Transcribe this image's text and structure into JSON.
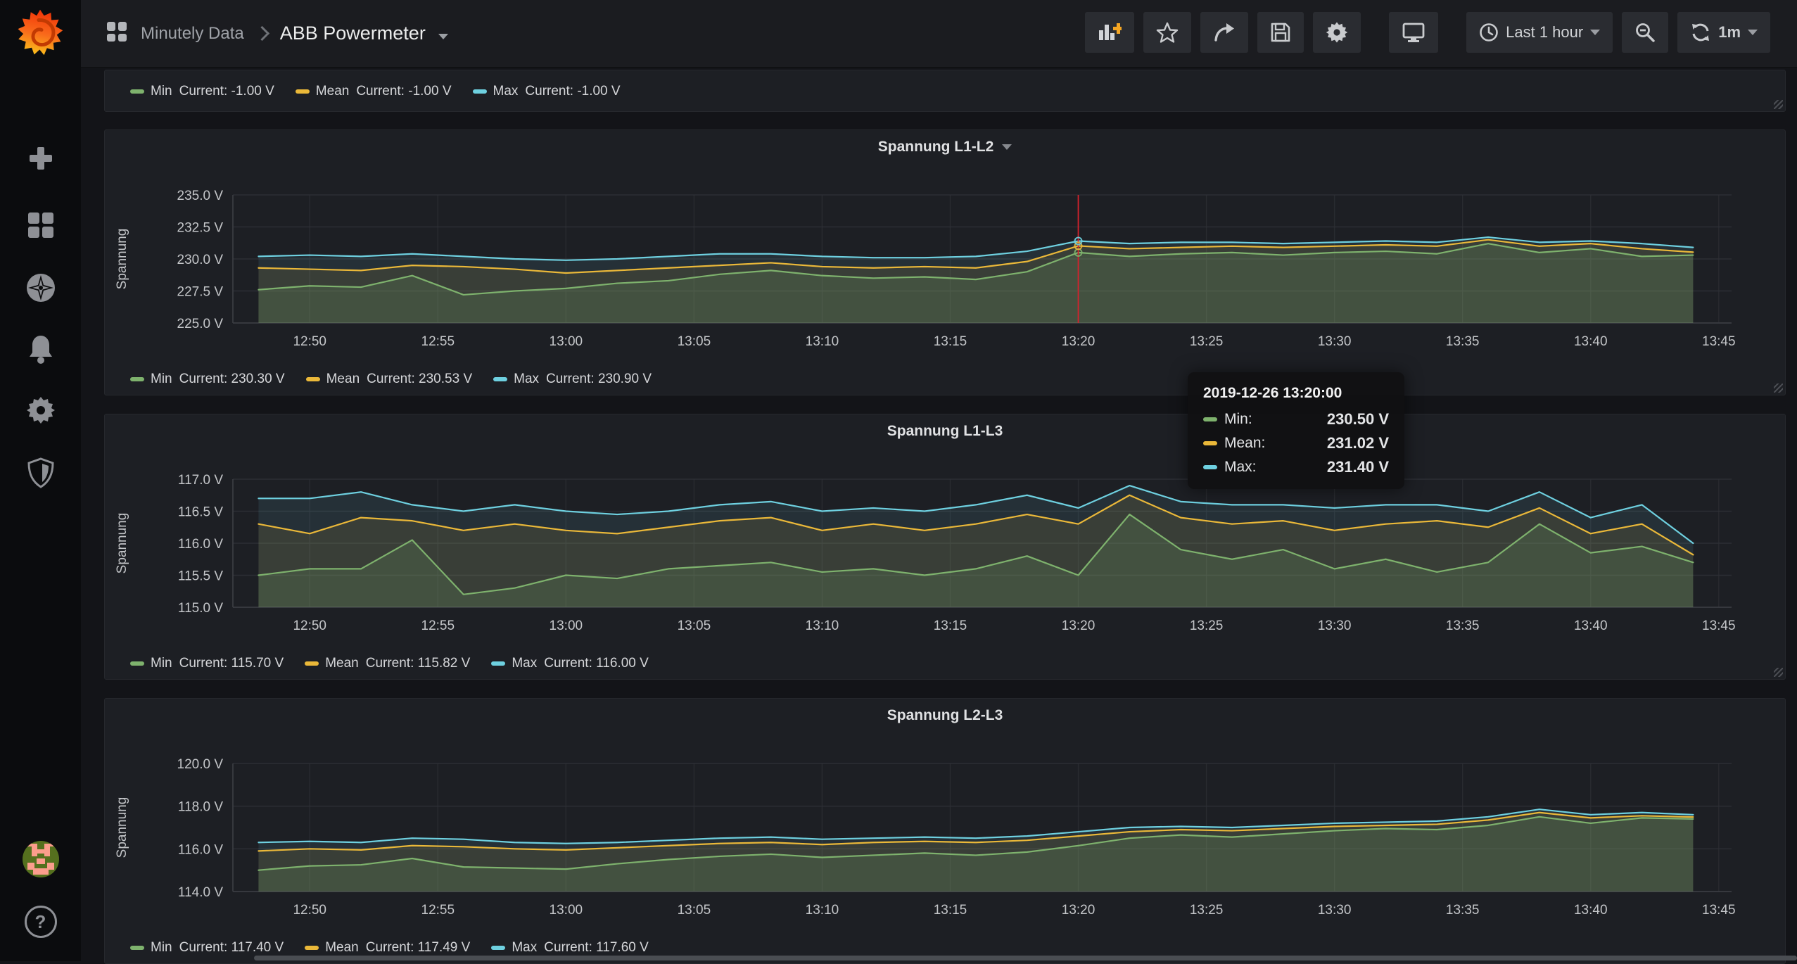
{
  "app": {
    "name": "Grafana"
  },
  "colors": {
    "min": "#7eb26d",
    "mean": "#eab839",
    "max": "#6ed0e0",
    "crosshair": "#d2222d",
    "accent_orange": "#f27b1e",
    "brand_orange": "#ff6a00"
  },
  "sidebar": {
    "icons": [
      "grafana-logo",
      "create",
      "dashboards",
      "explore",
      "alerting",
      "configuration",
      "server-admin",
      "user-avatar",
      "help"
    ]
  },
  "header": {
    "breadcrumb": {
      "section": "Minutely Data",
      "page": "ABB Powermeter"
    },
    "toolbar": {
      "icons": [
        "add-panel",
        "star",
        "share",
        "save",
        "dashboard-settings",
        "cycle-view",
        "time-picker",
        "zoom-out",
        "refresh"
      ],
      "time_range": "Last 1 hour",
      "refresh_interval": "1m"
    }
  },
  "tooltip": {
    "timestamp": "2019-12-26 13:20:00",
    "rows": [
      {
        "key": "min",
        "label": "Min:",
        "value": "230.50 V"
      },
      {
        "key": "mean",
        "label": "Mean:",
        "value": "231.02 V"
      },
      {
        "key": "max",
        "label": "Max:",
        "value": "231.40 V"
      }
    ]
  },
  "top_panel": {
    "legend": [
      {
        "key": "min",
        "name": "Min",
        "current": "Current: -1.00 V"
      },
      {
        "key": "mean",
        "name": "Mean",
        "current": "Current: -1.00 V"
      },
      {
        "key": "max",
        "name": "Max",
        "current": "Current: -1.00 V"
      }
    ]
  },
  "chart_data": [
    {
      "type": "line",
      "title": "Spannung L1-L2",
      "title_caret": true,
      "ylabel": "Spannung",
      "ylim": [
        225,
        235
      ],
      "x_domain": [
        47,
        105.5
      ],
      "x_start_minute": 48,
      "x_step_min": 2,
      "x_start_time": "12:48",
      "grid": true,
      "legend_position": "bottom",
      "y_ticks": [
        {
          "v": 225.0,
          "t": "225.0 V"
        },
        {
          "v": 227.5,
          "t": "227.5 V"
        },
        {
          "v": 230.0,
          "t": "230.0 V"
        },
        {
          "v": 232.5,
          "t": "232.5 V"
        },
        {
          "v": 235.0,
          "t": "235.0 V"
        }
      ],
      "x_ticks": [
        {
          "m": 50,
          "t": "12:50"
        },
        {
          "m": 55,
          "t": "12:55"
        },
        {
          "m": 60,
          "t": "13:00"
        },
        {
          "m": 65,
          "t": "13:05"
        },
        {
          "m": 70,
          "t": "13:10"
        },
        {
          "m": 75,
          "t": "13:15"
        },
        {
          "m": 80,
          "t": "13:20"
        },
        {
          "m": 85,
          "t": "13:25"
        },
        {
          "m": 90,
          "t": "13:30"
        },
        {
          "m": 95,
          "t": "13:35"
        },
        {
          "m": 100,
          "t": "13:40"
        },
        {
          "m": 105,
          "t": "13:45"
        }
      ],
      "series": [
        {
          "key": "min",
          "name": "Min",
          "values": [
            227.6,
            227.9,
            227.8,
            228.7,
            227.2,
            227.5,
            227.7,
            228.1,
            228.3,
            228.8,
            229.1,
            228.7,
            228.5,
            228.6,
            228.4,
            229.0,
            230.5,
            230.2,
            230.4,
            230.5,
            230.3,
            230.5,
            230.6,
            230.4,
            231.2,
            230.5,
            230.8,
            230.2,
            230.3
          ]
        },
        {
          "key": "mean",
          "name": "Mean",
          "values": [
            229.3,
            229.2,
            229.1,
            229.5,
            229.4,
            229.2,
            228.9,
            229.1,
            229.3,
            229.5,
            229.7,
            229.4,
            229.3,
            229.4,
            229.3,
            229.8,
            231.02,
            230.8,
            230.9,
            231.0,
            230.9,
            231.0,
            231.1,
            231.0,
            231.5,
            231.0,
            231.2,
            230.8,
            230.53
          ]
        },
        {
          "key": "max",
          "name": "Max",
          "values": [
            230.2,
            230.3,
            230.2,
            230.4,
            230.2,
            230.0,
            229.9,
            230.0,
            230.2,
            230.4,
            230.4,
            230.2,
            230.1,
            230.1,
            230.2,
            230.6,
            231.4,
            231.2,
            231.3,
            231.3,
            231.2,
            231.3,
            231.4,
            231.3,
            231.7,
            231.3,
            231.4,
            231.2,
            230.9
          ]
        }
      ],
      "legend": [
        {
          "key": "min",
          "name": "Min",
          "current": "Current: 230.30 V"
        },
        {
          "key": "mean",
          "name": "Mean",
          "current": "Current: 230.53 V"
        },
        {
          "key": "max",
          "name": "Max",
          "current": "Current: 230.90 V"
        }
      ],
      "crosshair": {
        "minute": 80,
        "time": "13:20"
      }
    },
    {
      "type": "line",
      "title": "Spannung L1-L3",
      "title_caret": false,
      "ylabel": "Spannung",
      "ylim": [
        115,
        117
      ],
      "x_domain": [
        47,
        105.5
      ],
      "x_start_minute": 48,
      "x_step_min": 2,
      "x_start_time": "12:48",
      "grid": true,
      "legend_position": "bottom",
      "y_ticks": [
        {
          "v": 115.0,
          "t": "115.0 V"
        },
        {
          "v": 115.5,
          "t": "115.5 V"
        },
        {
          "v": 116.0,
          "t": "116.0 V"
        },
        {
          "v": 116.5,
          "t": "116.5 V"
        },
        {
          "v": 117.0,
          "t": "117.0 V"
        }
      ],
      "x_ticks": [
        {
          "m": 50,
          "t": "12:50"
        },
        {
          "m": 55,
          "t": "12:55"
        },
        {
          "m": 60,
          "t": "13:00"
        },
        {
          "m": 65,
          "t": "13:05"
        },
        {
          "m": 70,
          "t": "13:10"
        },
        {
          "m": 75,
          "t": "13:15"
        },
        {
          "m": 80,
          "t": "13:20"
        },
        {
          "m": 85,
          "t": "13:25"
        },
        {
          "m": 90,
          "t": "13:30"
        },
        {
          "m": 95,
          "t": "13:35"
        },
        {
          "m": 100,
          "t": "13:40"
        },
        {
          "m": 105,
          "t": "13:45"
        }
      ],
      "series": [
        {
          "key": "min",
          "name": "Min",
          "values": [
            115.5,
            115.6,
            115.6,
            116.05,
            115.2,
            115.3,
            115.5,
            115.45,
            115.6,
            115.65,
            115.7,
            115.55,
            115.6,
            115.5,
            115.6,
            115.8,
            115.5,
            116.45,
            115.9,
            115.75,
            115.9,
            115.6,
            115.75,
            115.55,
            115.7,
            116.3,
            115.85,
            115.95,
            115.7
          ]
        },
        {
          "key": "mean",
          "name": "Mean",
          "values": [
            116.3,
            116.15,
            116.4,
            116.35,
            116.2,
            116.3,
            116.2,
            116.15,
            116.25,
            116.35,
            116.4,
            116.2,
            116.3,
            116.2,
            116.3,
            116.45,
            116.3,
            116.75,
            116.4,
            116.3,
            116.35,
            116.2,
            116.3,
            116.35,
            116.25,
            116.55,
            116.15,
            116.3,
            115.82
          ]
        },
        {
          "key": "max",
          "name": "Max",
          "values": [
            116.7,
            116.7,
            116.8,
            116.6,
            116.5,
            116.6,
            116.5,
            116.45,
            116.5,
            116.6,
            116.65,
            116.5,
            116.55,
            116.5,
            116.6,
            116.75,
            116.55,
            116.9,
            116.65,
            116.6,
            116.6,
            116.55,
            116.6,
            116.6,
            116.5,
            116.8,
            116.4,
            116.6,
            116.0
          ]
        }
      ],
      "legend": [
        {
          "key": "min",
          "name": "Min",
          "current": "Current: 115.70 V"
        },
        {
          "key": "mean",
          "name": "Mean",
          "current": "Current: 115.82 V"
        },
        {
          "key": "max",
          "name": "Max",
          "current": "Current: 116.00 V"
        }
      ]
    },
    {
      "type": "line",
      "title": "Spannung L2-L3",
      "title_caret": false,
      "ylabel": "Spannung",
      "ylim": [
        114,
        120
      ],
      "x_domain": [
        47,
        105.5
      ],
      "x_start_minute": 48,
      "x_step_min": 2,
      "x_start_time": "12:48",
      "grid": true,
      "legend_position": "bottom",
      "y_ticks": [
        {
          "v": 114.0,
          "t": "114.0 V"
        },
        {
          "v": 116.0,
          "t": "116.0 V"
        },
        {
          "v": 118.0,
          "t": "118.0 V"
        },
        {
          "v": 120.0,
          "t": "120.0 V"
        }
      ],
      "x_ticks": [
        {
          "m": 50,
          "t": "12:50"
        },
        {
          "m": 55,
          "t": "12:55"
        },
        {
          "m": 60,
          "t": "13:00"
        },
        {
          "m": 65,
          "t": "13:05"
        },
        {
          "m": 70,
          "t": "13:10"
        },
        {
          "m": 75,
          "t": "13:15"
        },
        {
          "m": 80,
          "t": "13:20"
        },
        {
          "m": 85,
          "t": "13:25"
        },
        {
          "m": 90,
          "t": "13:30"
        },
        {
          "m": 95,
          "t": "13:35"
        },
        {
          "m": 100,
          "t": "13:40"
        },
        {
          "m": 105,
          "t": "13:45"
        }
      ],
      "series": [
        {
          "key": "min",
          "name": "Min",
          "values": [
            115.0,
            115.2,
            115.25,
            115.55,
            115.15,
            115.1,
            115.05,
            115.3,
            115.5,
            115.65,
            115.75,
            115.6,
            115.7,
            115.8,
            115.7,
            115.85,
            116.15,
            116.5,
            116.65,
            116.55,
            116.7,
            116.85,
            116.95,
            116.9,
            117.1,
            117.5,
            117.2,
            117.45,
            117.4
          ]
        },
        {
          "key": "mean",
          "name": "Mean",
          "values": [
            115.9,
            116.0,
            115.95,
            116.15,
            116.1,
            116.0,
            115.95,
            116.05,
            116.15,
            116.25,
            116.3,
            116.2,
            116.3,
            116.35,
            116.3,
            116.4,
            116.6,
            116.8,
            116.9,
            116.85,
            116.95,
            117.05,
            117.1,
            117.15,
            117.35,
            117.7,
            117.45,
            117.55,
            117.49
          ]
        },
        {
          "key": "max",
          "name": "Max",
          "values": [
            116.3,
            116.35,
            116.3,
            116.5,
            116.45,
            116.3,
            116.25,
            116.3,
            116.4,
            116.5,
            116.55,
            116.45,
            116.5,
            116.55,
            116.5,
            116.6,
            116.8,
            117.0,
            117.05,
            117.0,
            117.1,
            117.2,
            117.25,
            117.3,
            117.5,
            117.85,
            117.6,
            117.7,
            117.6
          ]
        }
      ],
      "legend": [
        {
          "key": "min",
          "name": "Min",
          "current": "Current: 117.40 V"
        },
        {
          "key": "mean",
          "name": "Mean",
          "current": "Current: 117.49 V"
        },
        {
          "key": "max",
          "name": "Max",
          "current": "Current: 117.60 V"
        }
      ]
    }
  ]
}
